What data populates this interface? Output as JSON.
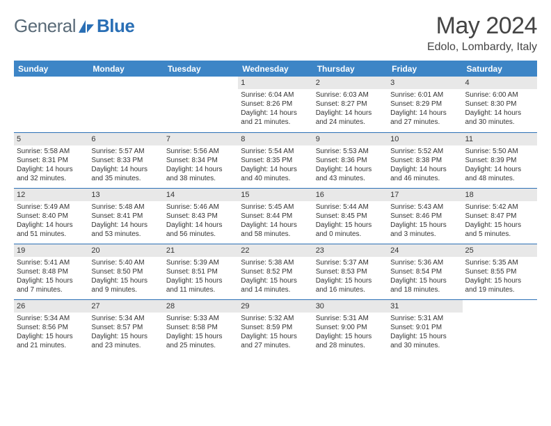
{
  "brand": {
    "part1": "General",
    "part2": "Blue"
  },
  "title": "May 2024",
  "location": "Edolo, Lombardy, Italy",
  "colors": {
    "header_bg": "#3d85c6",
    "header_text": "#ffffff",
    "daynum_bg": "#e8e8e8",
    "rule": "#2a6fb5",
    "logo_gray": "#5a6b78",
    "logo_blue": "#2a6fb5"
  },
  "columns": [
    "Sunday",
    "Monday",
    "Tuesday",
    "Wednesday",
    "Thursday",
    "Friday",
    "Saturday"
  ],
  "weeks": [
    [
      {
        "blank": true
      },
      {
        "blank": true
      },
      {
        "blank": true
      },
      {
        "day": "1",
        "sunrise": "Sunrise: 6:04 AM",
        "sunset": "Sunset: 8:26 PM",
        "daylight": "Daylight: 14 hours and 21 minutes."
      },
      {
        "day": "2",
        "sunrise": "Sunrise: 6:03 AM",
        "sunset": "Sunset: 8:27 PM",
        "daylight": "Daylight: 14 hours and 24 minutes."
      },
      {
        "day": "3",
        "sunrise": "Sunrise: 6:01 AM",
        "sunset": "Sunset: 8:29 PM",
        "daylight": "Daylight: 14 hours and 27 minutes."
      },
      {
        "day": "4",
        "sunrise": "Sunrise: 6:00 AM",
        "sunset": "Sunset: 8:30 PM",
        "daylight": "Daylight: 14 hours and 30 minutes."
      }
    ],
    [
      {
        "day": "5",
        "sunrise": "Sunrise: 5:58 AM",
        "sunset": "Sunset: 8:31 PM",
        "daylight": "Daylight: 14 hours and 32 minutes."
      },
      {
        "day": "6",
        "sunrise": "Sunrise: 5:57 AM",
        "sunset": "Sunset: 8:33 PM",
        "daylight": "Daylight: 14 hours and 35 minutes."
      },
      {
        "day": "7",
        "sunrise": "Sunrise: 5:56 AM",
        "sunset": "Sunset: 8:34 PM",
        "daylight": "Daylight: 14 hours and 38 minutes."
      },
      {
        "day": "8",
        "sunrise": "Sunrise: 5:54 AM",
        "sunset": "Sunset: 8:35 PM",
        "daylight": "Daylight: 14 hours and 40 minutes."
      },
      {
        "day": "9",
        "sunrise": "Sunrise: 5:53 AM",
        "sunset": "Sunset: 8:36 PM",
        "daylight": "Daylight: 14 hours and 43 minutes."
      },
      {
        "day": "10",
        "sunrise": "Sunrise: 5:52 AM",
        "sunset": "Sunset: 8:38 PM",
        "daylight": "Daylight: 14 hours and 46 minutes."
      },
      {
        "day": "11",
        "sunrise": "Sunrise: 5:50 AM",
        "sunset": "Sunset: 8:39 PM",
        "daylight": "Daylight: 14 hours and 48 minutes."
      }
    ],
    [
      {
        "day": "12",
        "sunrise": "Sunrise: 5:49 AM",
        "sunset": "Sunset: 8:40 PM",
        "daylight": "Daylight: 14 hours and 51 minutes."
      },
      {
        "day": "13",
        "sunrise": "Sunrise: 5:48 AM",
        "sunset": "Sunset: 8:41 PM",
        "daylight": "Daylight: 14 hours and 53 minutes."
      },
      {
        "day": "14",
        "sunrise": "Sunrise: 5:46 AM",
        "sunset": "Sunset: 8:43 PM",
        "daylight": "Daylight: 14 hours and 56 minutes."
      },
      {
        "day": "15",
        "sunrise": "Sunrise: 5:45 AM",
        "sunset": "Sunset: 8:44 PM",
        "daylight": "Daylight: 14 hours and 58 minutes."
      },
      {
        "day": "16",
        "sunrise": "Sunrise: 5:44 AM",
        "sunset": "Sunset: 8:45 PM",
        "daylight": "Daylight: 15 hours and 0 minutes."
      },
      {
        "day": "17",
        "sunrise": "Sunrise: 5:43 AM",
        "sunset": "Sunset: 8:46 PM",
        "daylight": "Daylight: 15 hours and 3 minutes."
      },
      {
        "day": "18",
        "sunrise": "Sunrise: 5:42 AM",
        "sunset": "Sunset: 8:47 PM",
        "daylight": "Daylight: 15 hours and 5 minutes."
      }
    ],
    [
      {
        "day": "19",
        "sunrise": "Sunrise: 5:41 AM",
        "sunset": "Sunset: 8:48 PM",
        "daylight": "Daylight: 15 hours and 7 minutes."
      },
      {
        "day": "20",
        "sunrise": "Sunrise: 5:40 AM",
        "sunset": "Sunset: 8:50 PM",
        "daylight": "Daylight: 15 hours and 9 minutes."
      },
      {
        "day": "21",
        "sunrise": "Sunrise: 5:39 AM",
        "sunset": "Sunset: 8:51 PM",
        "daylight": "Daylight: 15 hours and 11 minutes."
      },
      {
        "day": "22",
        "sunrise": "Sunrise: 5:38 AM",
        "sunset": "Sunset: 8:52 PM",
        "daylight": "Daylight: 15 hours and 14 minutes."
      },
      {
        "day": "23",
        "sunrise": "Sunrise: 5:37 AM",
        "sunset": "Sunset: 8:53 PM",
        "daylight": "Daylight: 15 hours and 16 minutes."
      },
      {
        "day": "24",
        "sunrise": "Sunrise: 5:36 AM",
        "sunset": "Sunset: 8:54 PM",
        "daylight": "Daylight: 15 hours and 18 minutes."
      },
      {
        "day": "25",
        "sunrise": "Sunrise: 5:35 AM",
        "sunset": "Sunset: 8:55 PM",
        "daylight": "Daylight: 15 hours and 19 minutes."
      }
    ],
    [
      {
        "day": "26",
        "sunrise": "Sunrise: 5:34 AM",
        "sunset": "Sunset: 8:56 PM",
        "daylight": "Daylight: 15 hours and 21 minutes."
      },
      {
        "day": "27",
        "sunrise": "Sunrise: 5:34 AM",
        "sunset": "Sunset: 8:57 PM",
        "daylight": "Daylight: 15 hours and 23 minutes."
      },
      {
        "day": "28",
        "sunrise": "Sunrise: 5:33 AM",
        "sunset": "Sunset: 8:58 PM",
        "daylight": "Daylight: 15 hours and 25 minutes."
      },
      {
        "day": "29",
        "sunrise": "Sunrise: 5:32 AM",
        "sunset": "Sunset: 8:59 PM",
        "daylight": "Daylight: 15 hours and 27 minutes."
      },
      {
        "day": "30",
        "sunrise": "Sunrise: 5:31 AM",
        "sunset": "Sunset: 9:00 PM",
        "daylight": "Daylight: 15 hours and 28 minutes."
      },
      {
        "day": "31",
        "sunrise": "Sunrise: 5:31 AM",
        "sunset": "Sunset: 9:01 PM",
        "daylight": "Daylight: 15 hours and 30 minutes."
      },
      {
        "blank": true
      }
    ]
  ]
}
